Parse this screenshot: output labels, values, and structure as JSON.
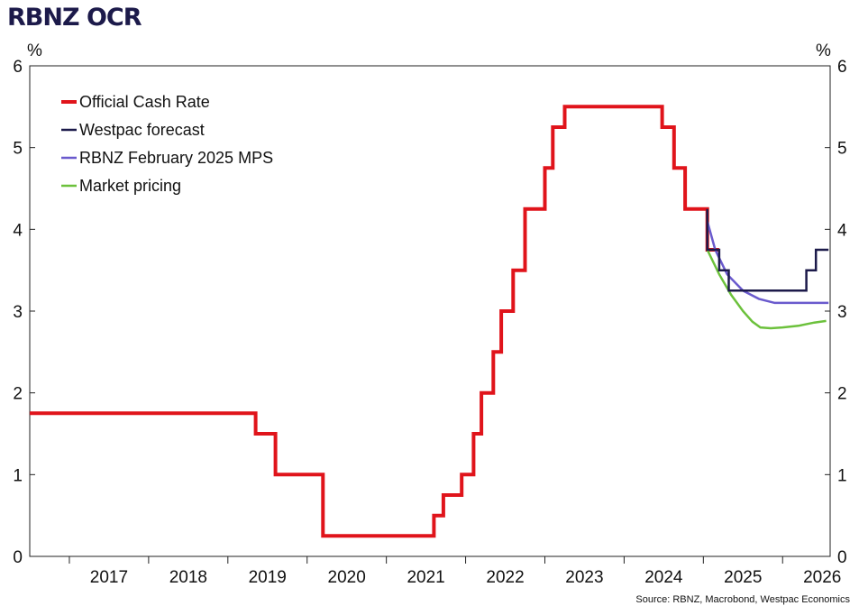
{
  "chart_data": {
    "type": "line",
    "title": "RBNZ OCR",
    "ylabel_left": "%",
    "ylabel_right": "%",
    "ylim": [
      0,
      6
    ],
    "yticks": [
      0,
      1,
      2,
      3,
      4,
      5,
      6
    ],
    "xlim": [
      2016.5,
      2026.6
    ],
    "year_labels": [
      "2017",
      "2018",
      "2019",
      "2020",
      "2021",
      "2022",
      "2023",
      "2024",
      "2025",
      "2026"
    ],
    "grid": false,
    "legend_position": "top-left",
    "source": "Source: RBNZ, Macrobond, Westpac Economics",
    "series": [
      {
        "name": "Official Cash Rate",
        "color": "#e0141b",
        "step": true,
        "points": [
          [
            2016.5,
            1.75
          ],
          [
            2019.35,
            1.75
          ],
          [
            2019.35,
            1.5
          ],
          [
            2019.6,
            1.5
          ],
          [
            2019.6,
            1.0
          ],
          [
            2020.2,
            1.0
          ],
          [
            2020.2,
            0.25
          ],
          [
            2021.6,
            0.25
          ],
          [
            2021.6,
            0.5
          ],
          [
            2021.72,
            0.5
          ],
          [
            2021.72,
            0.75
          ],
          [
            2021.95,
            0.75
          ],
          [
            2021.95,
            1.0
          ],
          [
            2022.1,
            1.0
          ],
          [
            2022.1,
            1.5
          ],
          [
            2022.2,
            1.5
          ],
          [
            2022.2,
            2.0
          ],
          [
            2022.35,
            2.0
          ],
          [
            2022.35,
            2.5
          ],
          [
            2022.45,
            2.5
          ],
          [
            2022.45,
            3.0
          ],
          [
            2022.6,
            3.0
          ],
          [
            2022.6,
            3.5
          ],
          [
            2022.75,
            3.5
          ],
          [
            2022.75,
            4.25
          ],
          [
            2023.0,
            4.25
          ],
          [
            2023.0,
            4.75
          ],
          [
            2023.1,
            4.75
          ],
          [
            2023.1,
            5.25
          ],
          [
            2023.25,
            5.25
          ],
          [
            2023.25,
            5.5
          ],
          [
            2024.48,
            5.5
          ],
          [
            2024.48,
            5.25
          ],
          [
            2024.63,
            5.25
          ],
          [
            2024.63,
            4.75
          ],
          [
            2024.77,
            4.75
          ],
          [
            2024.77,
            4.25
          ],
          [
            2025.05,
            4.25
          ],
          [
            2025.05,
            3.75
          ],
          [
            2025.2,
            3.75
          ]
        ]
      },
      {
        "name": "Westpac forecast",
        "color": "#1c1a4a",
        "step": true,
        "points": [
          [
            2025.05,
            4.25
          ],
          [
            2025.05,
            3.75
          ],
          [
            2025.2,
            3.75
          ],
          [
            2025.2,
            3.5
          ],
          [
            2025.32,
            3.5
          ],
          [
            2025.32,
            3.25
          ],
          [
            2026.3,
            3.25
          ],
          [
            2026.3,
            3.5
          ],
          [
            2026.42,
            3.5
          ],
          [
            2026.42,
            3.75
          ],
          [
            2026.58,
            3.75
          ]
        ]
      },
      {
        "name": "RBNZ February 2025 MPS",
        "color": "#6a5acd",
        "step": false,
        "points": [
          [
            2025.05,
            4.1
          ],
          [
            2025.15,
            3.75
          ],
          [
            2025.3,
            3.45
          ],
          [
            2025.5,
            3.25
          ],
          [
            2025.7,
            3.15
          ],
          [
            2025.9,
            3.1
          ],
          [
            2026.2,
            3.1
          ],
          [
            2026.58,
            3.1
          ]
        ]
      },
      {
        "name": "Market pricing",
        "color": "#6cc13c",
        "step": false,
        "points": [
          [
            2025.05,
            3.75
          ],
          [
            2025.2,
            3.45
          ],
          [
            2025.35,
            3.2
          ],
          [
            2025.5,
            3.0
          ],
          [
            2025.62,
            2.87
          ],
          [
            2025.72,
            2.8
          ],
          [
            2025.85,
            2.79
          ],
          [
            2026.0,
            2.8
          ],
          [
            2026.2,
            2.82
          ],
          [
            2026.4,
            2.86
          ],
          [
            2026.55,
            2.88
          ]
        ]
      }
    ]
  }
}
